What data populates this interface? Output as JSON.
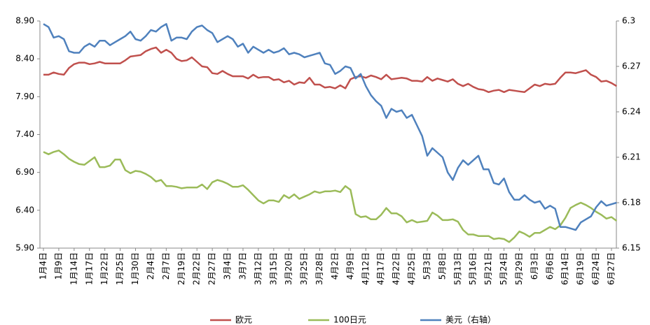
{
  "chart_data": {
    "type": "line",
    "categories": [
      "1月4日",
      null,
      null,
      "1月9日",
      null,
      null,
      "1月14日",
      null,
      null,
      "1月17日",
      null,
      null,
      "1月22日",
      null,
      null,
      "1月25日",
      null,
      null,
      "1月30日",
      null,
      null,
      "2月4日",
      null,
      null,
      "2月7日",
      null,
      null,
      "2月19日",
      null,
      null,
      "2月22日",
      null,
      null,
      "2月27日",
      null,
      null,
      "3月4日",
      null,
      null,
      "3月7日",
      null,
      null,
      "3月12日",
      null,
      null,
      "3月15日",
      null,
      null,
      "3月20日",
      null,
      null,
      "3月25日",
      null,
      null,
      "3月28日",
      null,
      null,
      "4月2日",
      null,
      null,
      "4月9日",
      null,
      null,
      "4月12日",
      null,
      null,
      "4月17日",
      null,
      null,
      "4月22日",
      null,
      null,
      "4月25日",
      null,
      null,
      "5月3日",
      null,
      null,
      "5月8日",
      null,
      null,
      "5月13日",
      null,
      null,
      "5月16日",
      null,
      null,
      "5月21日",
      null,
      null,
      "5月24日",
      null,
      null,
      "5月29日",
      null,
      null,
      "6月3日",
      null,
      null,
      "6月6日",
      null,
      null,
      "6月14日",
      null,
      null,
      "6月19日",
      null,
      null,
      "6月24日",
      null,
      null,
      "6月27日",
      null
    ],
    "series": [
      {
        "name": "欧元",
        "color": "#c0504d",
        "values": [
          8.19,
          8.19,
          8.22,
          8.2,
          8.19,
          8.28,
          8.33,
          8.35,
          8.35,
          8.33,
          8.34,
          8.36,
          8.34,
          8.34,
          8.34,
          8.34,
          8.38,
          8.43,
          8.44,
          8.45,
          8.5,
          8.53,
          8.55,
          8.48,
          8.52,
          8.48,
          8.4,
          8.37,
          8.38,
          8.42,
          8.36,
          8.3,
          8.29,
          8.21,
          8.2,
          8.24,
          8.2,
          8.17,
          8.17,
          8.17,
          8.14,
          8.19,
          8.15,
          8.16,
          8.16,
          8.12,
          8.13,
          8.09,
          8.11,
          8.06,
          8.09,
          8.08,
          8.15,
          8.06,
          8.06,
          8.02,
          8.03,
          8.01,
          8.05,
          8.01,
          8.13,
          8.16,
          8.17,
          8.15,
          8.18,
          8.16,
          8.13,
          8.19,
          8.13,
          8.14,
          8.15,
          8.14,
          8.11,
          8.11,
          8.1,
          8.16,
          8.11,
          8.14,
          8.12,
          8.1,
          8.13,
          8.07,
          8.04,
          8.07,
          8.03,
          8.0,
          7.99,
          7.96,
          7.98,
          7.99,
          7.96,
          7.99,
          7.98,
          7.97,
          7.96,
          8.01,
          8.06,
          8.04,
          8.07,
          8.06,
          8.07,
          8.15,
          8.22,
          8.22,
          8.21,
          8.23,
          8.25,
          8.19,
          8.16,
          8.1,
          8.11,
          8.08,
          8.04
        ]
      },
      {
        "name": "100日元",
        "color": "#9bbb59",
        "values": [
          7.17,
          7.14,
          7.17,
          7.19,
          7.14,
          7.08,
          7.04,
          7.01,
          7.0,
          7.05,
          7.1,
          6.97,
          6.97,
          6.99,
          7.07,
          7.07,
          6.93,
          6.89,
          6.92,
          6.91,
          6.88,
          6.84,
          6.78,
          6.8,
          6.72,
          6.72,
          6.71,
          6.69,
          6.7,
          6.7,
          6.7,
          6.74,
          6.68,
          6.77,
          6.8,
          6.78,
          6.75,
          6.71,
          6.71,
          6.73,
          6.67,
          6.6,
          6.53,
          6.49,
          6.53,
          6.53,
          6.51,
          6.6,
          6.56,
          6.61,
          6.55,
          6.58,
          6.61,
          6.65,
          6.63,
          6.65,
          6.65,
          6.66,
          6.64,
          6.72,
          6.67,
          6.35,
          6.31,
          6.32,
          6.28,
          6.28,
          6.34,
          6.43,
          6.36,
          6.36,
          6.32,
          6.24,
          6.27,
          6.24,
          6.25,
          6.26,
          6.37,
          6.33,
          6.27,
          6.27,
          6.28,
          6.25,
          6.14,
          6.08,
          6.08,
          6.06,
          6.06,
          6.06,
          6.02,
          6.03,
          6.02,
          5.98,
          6.04,
          6.12,
          6.09,
          6.05,
          6.1,
          6.1,
          6.14,
          6.18,
          6.15,
          6.2,
          6.3,
          6.43,
          6.47,
          6.5,
          6.47,
          6.43,
          6.38,
          6.34,
          6.29,
          6.31,
          6.26
        ]
      },
      {
        "name": "美元（右轴）",
        "color": "#4f81bd",
        "axis": "y2",
        "values": [
          6.298,
          6.296,
          6.289,
          6.29,
          6.288,
          6.28,
          6.279,
          6.279,
          6.283,
          6.285,
          6.283,
          6.287,
          6.287,
          6.284,
          6.286,
          6.288,
          6.29,
          6.293,
          6.288,
          6.287,
          6.29,
          6.294,
          6.293,
          6.296,
          6.298,
          6.287,
          6.289,
          6.289,
          6.288,
          6.293,
          6.296,
          6.297,
          6.294,
          6.292,
          6.286,
          6.288,
          6.29,
          6.288,
          6.283,
          6.285,
          6.279,
          6.283,
          6.281,
          6.279,
          6.281,
          6.279,
          6.28,
          6.282,
          6.278,
          6.279,
          6.278,
          6.276,
          6.277,
          6.278,
          6.279,
          6.272,
          6.271,
          6.265,
          6.267,
          6.27,
          6.269,
          6.262,
          6.265,
          6.257,
          6.251,
          6.247,
          6.244,
          6.236,
          6.242,
          6.24,
          6.241,
          6.236,
          6.238,
          6.231,
          6.224,
          6.211,
          6.216,
          6.213,
          6.21,
          6.2,
          6.195,
          6.203,
          6.208,
          6.205,
          6.208,
          6.211,
          6.202,
          6.202,
          6.193,
          6.192,
          6.196,
          6.187,
          6.182,
          6.182,
          6.185,
          6.182,
          6.18,
          6.181,
          6.176,
          6.178,
          6.176,
          6.164,
          6.164,
          6.163,
          6.162,
          6.167,
          6.169,
          6.171,
          6.177,
          6.181,
          6.178,
          6.179,
          6.18
        ]
      }
    ],
    "ylim": [
      5.9,
      8.9
    ],
    "yticks": [
      {
        "value": 5.9,
        "label": "5.90"
      },
      {
        "value": 6.4,
        "label": "6.40"
      },
      {
        "value": 6.9,
        "label": "6.90"
      },
      {
        "value": 7.4,
        "label": "7.40"
      },
      {
        "value": 7.9,
        "label": "7.90"
      },
      {
        "value": 8.4,
        "label": "8.40"
      },
      {
        "value": 8.9,
        "label": "8.90"
      }
    ],
    "y2lim": [
      6.15,
      6.3
    ],
    "y2ticks": [
      6.15,
      6.18,
      6.21,
      6.24,
      6.27,
      6.3
    ],
    "grid": false,
    "legend": "bottom"
  }
}
